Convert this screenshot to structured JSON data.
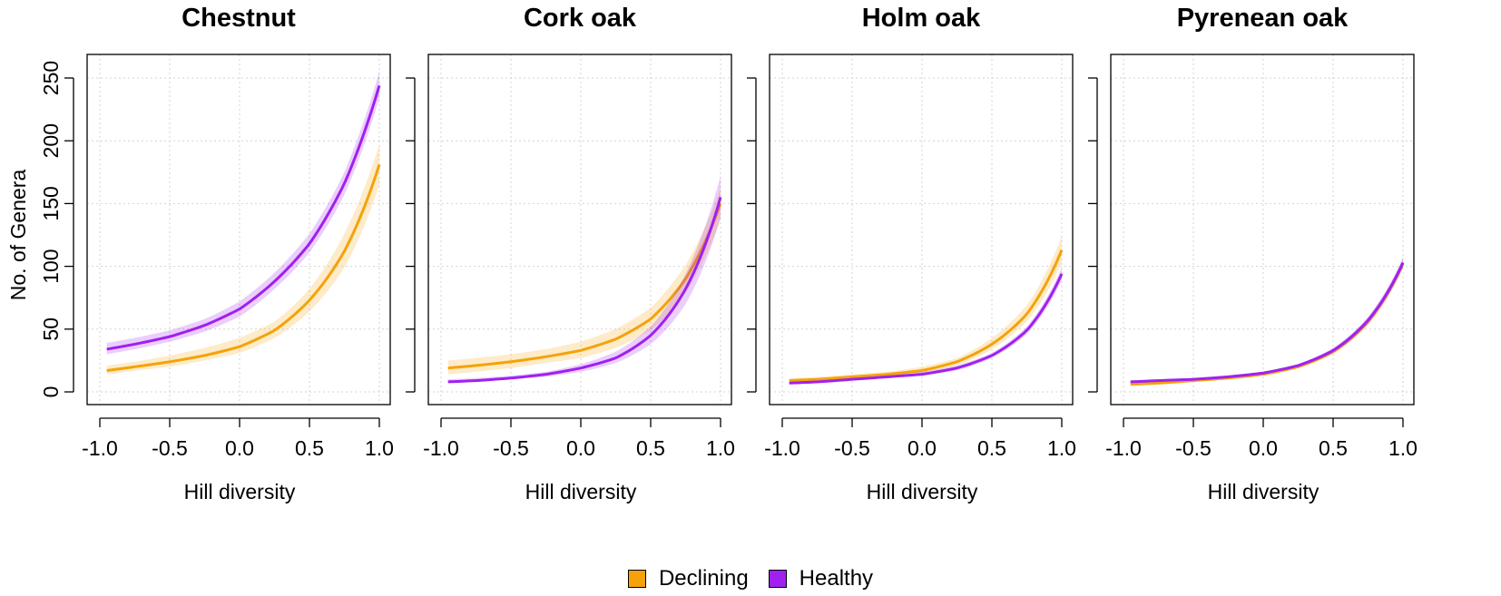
{
  "colors": {
    "Declining": "#f5a20a",
    "Healthy": "#a020f0"
  },
  "legend": {
    "items": [
      {
        "label": "Declining"
      },
      {
        "label": "Healthy"
      }
    ]
  },
  "chart_data": [
    {
      "type": "line",
      "title": "Chestnut",
      "xlabel": "Hill diversity",
      "ylabel": "No. of Genera",
      "xlim": [
        -1.0,
        1.0
      ],
      "ylim": [
        0,
        250
      ],
      "xticks": [
        "-1.0",
        "-0.5",
        "0.0",
        "0.5",
        "1.0"
      ],
      "yticks": [
        "0",
        "50",
        "100",
        "150",
        "200",
        "250"
      ],
      "grid": true,
      "series": [
        {
          "name": "Declining",
          "x": [
            -0.95,
            -0.75,
            -0.5,
            -0.25,
            0.0,
            0.25,
            0.5,
            0.75,
            1.0
          ],
          "y": [
            17,
            20,
            24,
            29,
            36,
            49,
            73,
            112,
            181
          ],
          "lower": [
            14,
            17,
            20,
            25,
            31,
            43,
            64,
            99,
            165
          ],
          "upper": [
            21,
            24,
            29,
            35,
            43,
            56,
            82,
            126,
            197
          ]
        },
        {
          "name": "Healthy",
          "x": [
            -0.95,
            -0.75,
            -0.5,
            -0.25,
            0.0,
            0.25,
            0.5,
            0.75,
            1.0
          ],
          "y": [
            34,
            38,
            44,
            53,
            66,
            88,
            118,
            166,
            244
          ],
          "lower": [
            30,
            34,
            40,
            48,
            60,
            82,
            111,
            157,
            234
          ],
          "upper": [
            39,
            43,
            49,
            58,
            72,
            95,
            126,
            175,
            255
          ]
        }
      ]
    },
    {
      "type": "line",
      "title": "Cork oak",
      "xlabel": "Hill diversity",
      "ylabel": "",
      "xlim": [
        -1.0,
        1.0
      ],
      "ylim": [
        0,
        250
      ],
      "xticks": [
        "-1.0",
        "-0.5",
        "0.0",
        "0.5",
        "1.0"
      ],
      "yticks": [
        "0",
        "50",
        "100",
        "150",
        "200",
        "250"
      ],
      "grid": true,
      "series": [
        {
          "name": "Declining",
          "x": [
            -0.95,
            -0.75,
            -0.5,
            -0.25,
            0.0,
            0.25,
            0.5,
            0.75,
            1.0
          ],
          "y": [
            19,
            21,
            24,
            28,
            33,
            42,
            58,
            90,
            150
          ],
          "lower": [
            14,
            16,
            19,
            23,
            27,
            35,
            49,
            79,
            137
          ],
          "upper": [
            25,
            27,
            30,
            34,
            40,
            50,
            67,
            101,
            162
          ]
        },
        {
          "name": "Healthy",
          "x": [
            -0.95,
            -0.75,
            -0.5,
            -0.25,
            0.0,
            0.25,
            0.5,
            0.75,
            1.0
          ],
          "y": [
            8,
            9,
            11,
            14,
            19,
            27,
            45,
            82,
            155
          ],
          "lower": [
            7,
            8,
            10,
            12,
            16,
            23,
            38,
            70,
            139
          ],
          "upper": [
            10,
            11,
            13,
            16,
            22,
            32,
            52,
            94,
            172
          ]
        }
      ]
    },
    {
      "type": "line",
      "title": "Holm oak",
      "xlabel": "Hill diversity",
      "ylabel": "",
      "xlim": [
        -1.0,
        1.0
      ],
      "ylim": [
        0,
        250
      ],
      "xticks": [
        "-1.0",
        "-0.5",
        "0.0",
        "0.5",
        "1.0"
      ],
      "yticks": [
        "0",
        "50",
        "100",
        "150",
        "200",
        "250"
      ],
      "grid": true,
      "series": [
        {
          "name": "Declining",
          "x": [
            -0.95,
            -0.75,
            -0.5,
            -0.25,
            0.0,
            0.25,
            0.5,
            0.75,
            1.0
          ],
          "y": [
            9,
            10,
            12,
            14,
            17,
            24,
            38,
            62,
            113
          ],
          "lower": [
            8,
            9,
            10,
            12,
            15,
            21,
            34,
            56,
            103
          ],
          "upper": [
            11,
            12,
            14,
            16,
            20,
            27,
            43,
            69,
            124
          ]
        },
        {
          "name": "Healthy",
          "x": [
            -0.95,
            -0.75,
            -0.5,
            -0.25,
            0.0,
            0.25,
            0.5,
            0.75,
            1.0
          ],
          "y": [
            7,
            8,
            10,
            12,
            14,
            19,
            29,
            49,
            94
          ],
          "lower": [
            6,
            7,
            9,
            11,
            13,
            17,
            27,
            46,
            89
          ],
          "upper": [
            8,
            9,
            11,
            13,
            16,
            21,
            31,
            52,
            99
          ]
        }
      ]
    },
    {
      "type": "line",
      "title": "Pyrenean oak",
      "xlabel": "Hill diversity",
      "ylabel": "",
      "xlim": [
        -1.0,
        1.0
      ],
      "ylim": [
        0,
        250
      ],
      "xticks": [
        "-1.0",
        "-0.5",
        "0.0",
        "0.5",
        "1.0"
      ],
      "yticks": [
        "0",
        "50",
        "100",
        "150",
        "200",
        "250"
      ],
      "grid": true,
      "series": [
        {
          "name": "Declining",
          "x": [
            -0.95,
            -0.75,
            -0.5,
            -0.25,
            0.0,
            0.25,
            0.5,
            0.75,
            1.0
          ],
          "y": [
            6,
            7,
            9,
            11,
            14,
            20,
            32,
            56,
            102
          ],
          "lower": [
            5,
            6,
            8,
            10,
            13,
            19,
            30,
            53,
            98
          ],
          "upper": [
            7,
            8,
            10,
            12,
            15,
            21,
            34,
            59,
            106
          ]
        },
        {
          "name": "Healthy",
          "x": [
            -0.95,
            -0.75,
            -0.5,
            -0.25,
            0.0,
            0.25,
            0.5,
            0.75,
            1.0
          ],
          "y": [
            8,
            9,
            10,
            12,
            15,
            21,
            33,
            57,
            103
          ],
          "lower": [
            7,
            8,
            9,
            11,
            14,
            20,
            31,
            54,
            99
          ],
          "upper": [
            9,
            10,
            11,
            13,
            16,
            22,
            35,
            60,
            107
          ]
        }
      ]
    }
  ]
}
